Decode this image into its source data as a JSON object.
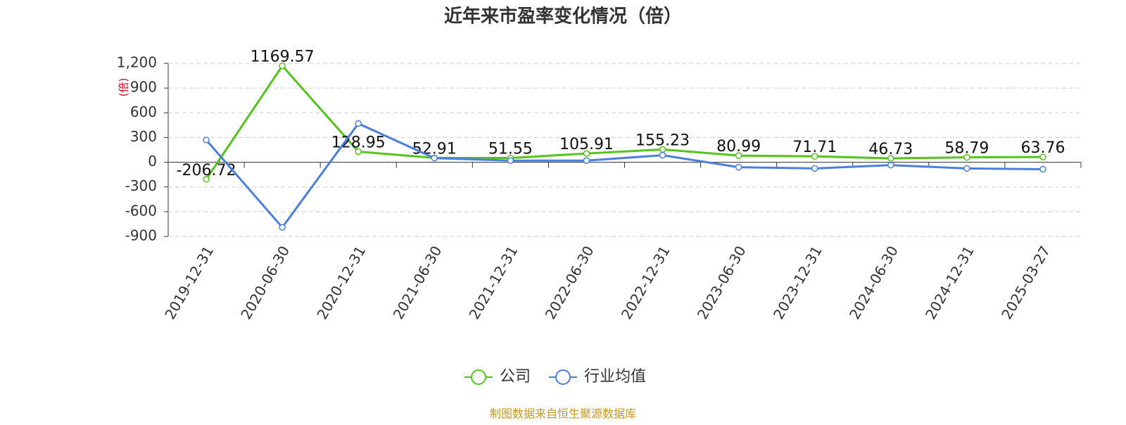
{
  "chart_data": {
    "type": "line",
    "title": "近年来市盈率变化情况（倍）",
    "y_label": "(倍)",
    "categories": [
      "2019-12-31",
      "2020-06-30",
      "2020-12-31",
      "2021-06-30",
      "2021-12-31",
      "2022-06-30",
      "2022-12-31",
      "2023-06-30",
      "2023-12-31",
      "2024-06-30",
      "2024-12-31",
      "2025-03-27"
    ],
    "series": [
      {
        "name": "公司",
        "color": "#52c41a",
        "values": [
          -206.72,
          1169.57,
          128.95,
          52.91,
          51.55,
          105.91,
          155.23,
          80.99,
          71.71,
          46.73,
          58.79,
          63.76
        ],
        "show_labels": true
      },
      {
        "name": "行业均值",
        "color": "#4a7fe0",
        "values": [
          270,
          -790,
          470,
          50,
          20,
          20,
          85,
          -60,
          -75,
          -35,
          -75,
          -85
        ],
        "show_labels": false
      }
    ],
    "ylim": [
      -900,
      1200
    ],
    "yticks": [
      {
        "value": 1200,
        "label": "1,200"
      },
      900,
      600,
      300,
      0,
      -300,
      -600,
      -900
    ],
    "grid": true,
    "legend": "bottom",
    "source": "制图数据来自恒生聚源数据库"
  }
}
